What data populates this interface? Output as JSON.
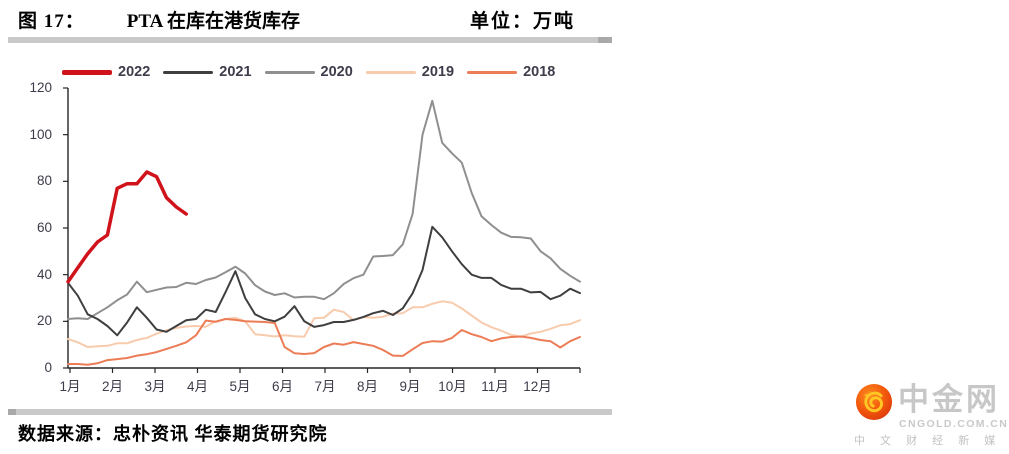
{
  "figure": {
    "label": "图 17：",
    "title": "PTA 在库在港货库存",
    "unit_label": "单位：万吨"
  },
  "source": {
    "text": "数据来源：忠朴资讯 华泰期货研究院"
  },
  "watermark": {
    "brand": "中金网",
    "domain": "CNGOLD.COM.CN",
    "tagline": "中 文 财 经 新 媒 体",
    "logo_icon": "orange-swirl-cloud-icon",
    "logo_colors": {
      "circle_outer": "#dd3a0a",
      "circle_inner": "#f96a12",
      "swirl": "#ffc624"
    }
  },
  "chart_data": {
    "type": "line",
    "title": "PTA 在库在港货库存",
    "unit": "万吨",
    "legend_position": "top",
    "grid": "off",
    "x_axis": {
      "labels": [
        "1月",
        "2月",
        "3月",
        "4月",
        "5月",
        "6月",
        "7月",
        "8月",
        "9月",
        "10月",
        "11月",
        "12月"
      ],
      "resolution": "weekly, 53 points per year"
    },
    "y_axis": {
      "min": 0,
      "max": 120,
      "step": 20,
      "ticks": [
        0,
        20,
        40,
        60,
        80,
        100,
        120
      ]
    },
    "axis_color": "#262626",
    "tick_label_color": "#3c3c4a",
    "series": [
      {
        "name": "2022",
        "color": "#D0121B",
        "width": 3.5,
        "values": [
          37,
          43,
          49,
          54,
          57,
          77,
          79,
          79,
          84,
          82,
          73,
          69,
          66
        ]
      },
      {
        "name": "2021",
        "color": "#3F3F3F",
        "width": 2,
        "values": [
          36.5,
          31,
          23,
          21,
          18,
          14,
          19.5,
          26,
          21.5,
          16.5,
          15.5,
          18,
          20.5,
          21,
          25,
          24,
          32.5,
          41.5,
          30,
          23,
          21,
          20,
          22,
          26.5,
          20,
          17.6,
          18.4,
          19.7,
          19.7,
          20.6,
          21.9,
          23.5,
          24.5,
          22.7,
          25.6,
          32,
          42,
          60.5,
          56,
          50,
          44.5,
          40,
          38.6,
          38.6,
          35.6,
          34,
          34,
          32.4,
          32.6,
          29.5,
          31,
          34,
          32.1
        ]
      },
      {
        "name": "2020",
        "color": "#8F8F8F",
        "width": 2,
        "values": [
          21,
          21.3,
          21,
          23.5,
          26,
          29,
          31.5,
          37,
          32.5,
          33.5,
          34.5,
          34.7,
          36.5,
          36,
          37.7,
          38.8,
          41,
          43.4,
          40.5,
          35.5,
          32.8,
          31.3,
          32,
          30.2,
          30.5,
          30.5,
          29.5,
          32,
          36,
          38.5,
          40,
          47.8,
          48,
          48.4,
          53,
          66,
          100,
          114.5,
          96.5,
          92,
          88,
          75,
          65,
          61.3,
          58,
          56.2,
          56,
          55.5,
          50,
          47,
          42.5,
          39.5,
          37
        ]
      },
      {
        "name": "2019",
        "color": "#F8CBAD",
        "width": 2,
        "values": [
          12.4,
          11,
          9,
          9.3,
          9.5,
          10.6,
          10.6,
          12,
          12.9,
          14.7,
          16.2,
          17.2,
          17.8,
          18,
          17.7,
          20,
          21,
          21.5,
          20,
          14.5,
          14,
          13.5,
          14,
          13.6,
          13.4,
          21.3,
          21.5,
          25,
          24,
          20.5,
          21.8,
          21.5,
          22,
          23.3,
          23.5,
          26,
          26,
          27.5,
          28.6,
          28,
          25.5,
          22.5,
          19.5,
          17.5,
          16,
          14.2,
          13.4,
          14.8,
          15.5,
          16.8,
          18.3,
          18.8,
          20.5
        ]
      },
      {
        "name": "2018",
        "color": "#EC7C55",
        "width": 2,
        "values": [
          1.7,
          1.7,
          1.4,
          2,
          3.4,
          3.8,
          4.3,
          5.3,
          5.9,
          6.8,
          8.2,
          9.5,
          11,
          14,
          20.3,
          19.8,
          21,
          20.6,
          20,
          19.9,
          19.7,
          19.3,
          9,
          6.3,
          6,
          6.4,
          9,
          10.5,
          10,
          11.1,
          10.3,
          9.5,
          7.7,
          5.3,
          5.2,
          8,
          10.7,
          11.5,
          11.3,
          12.9,
          16.3,
          14.5,
          13.3,
          11.5,
          12.7,
          13.3,
          13.5,
          12.9,
          12,
          11.5,
          8.8,
          11.5,
          13.3
        ]
      }
    ]
  }
}
